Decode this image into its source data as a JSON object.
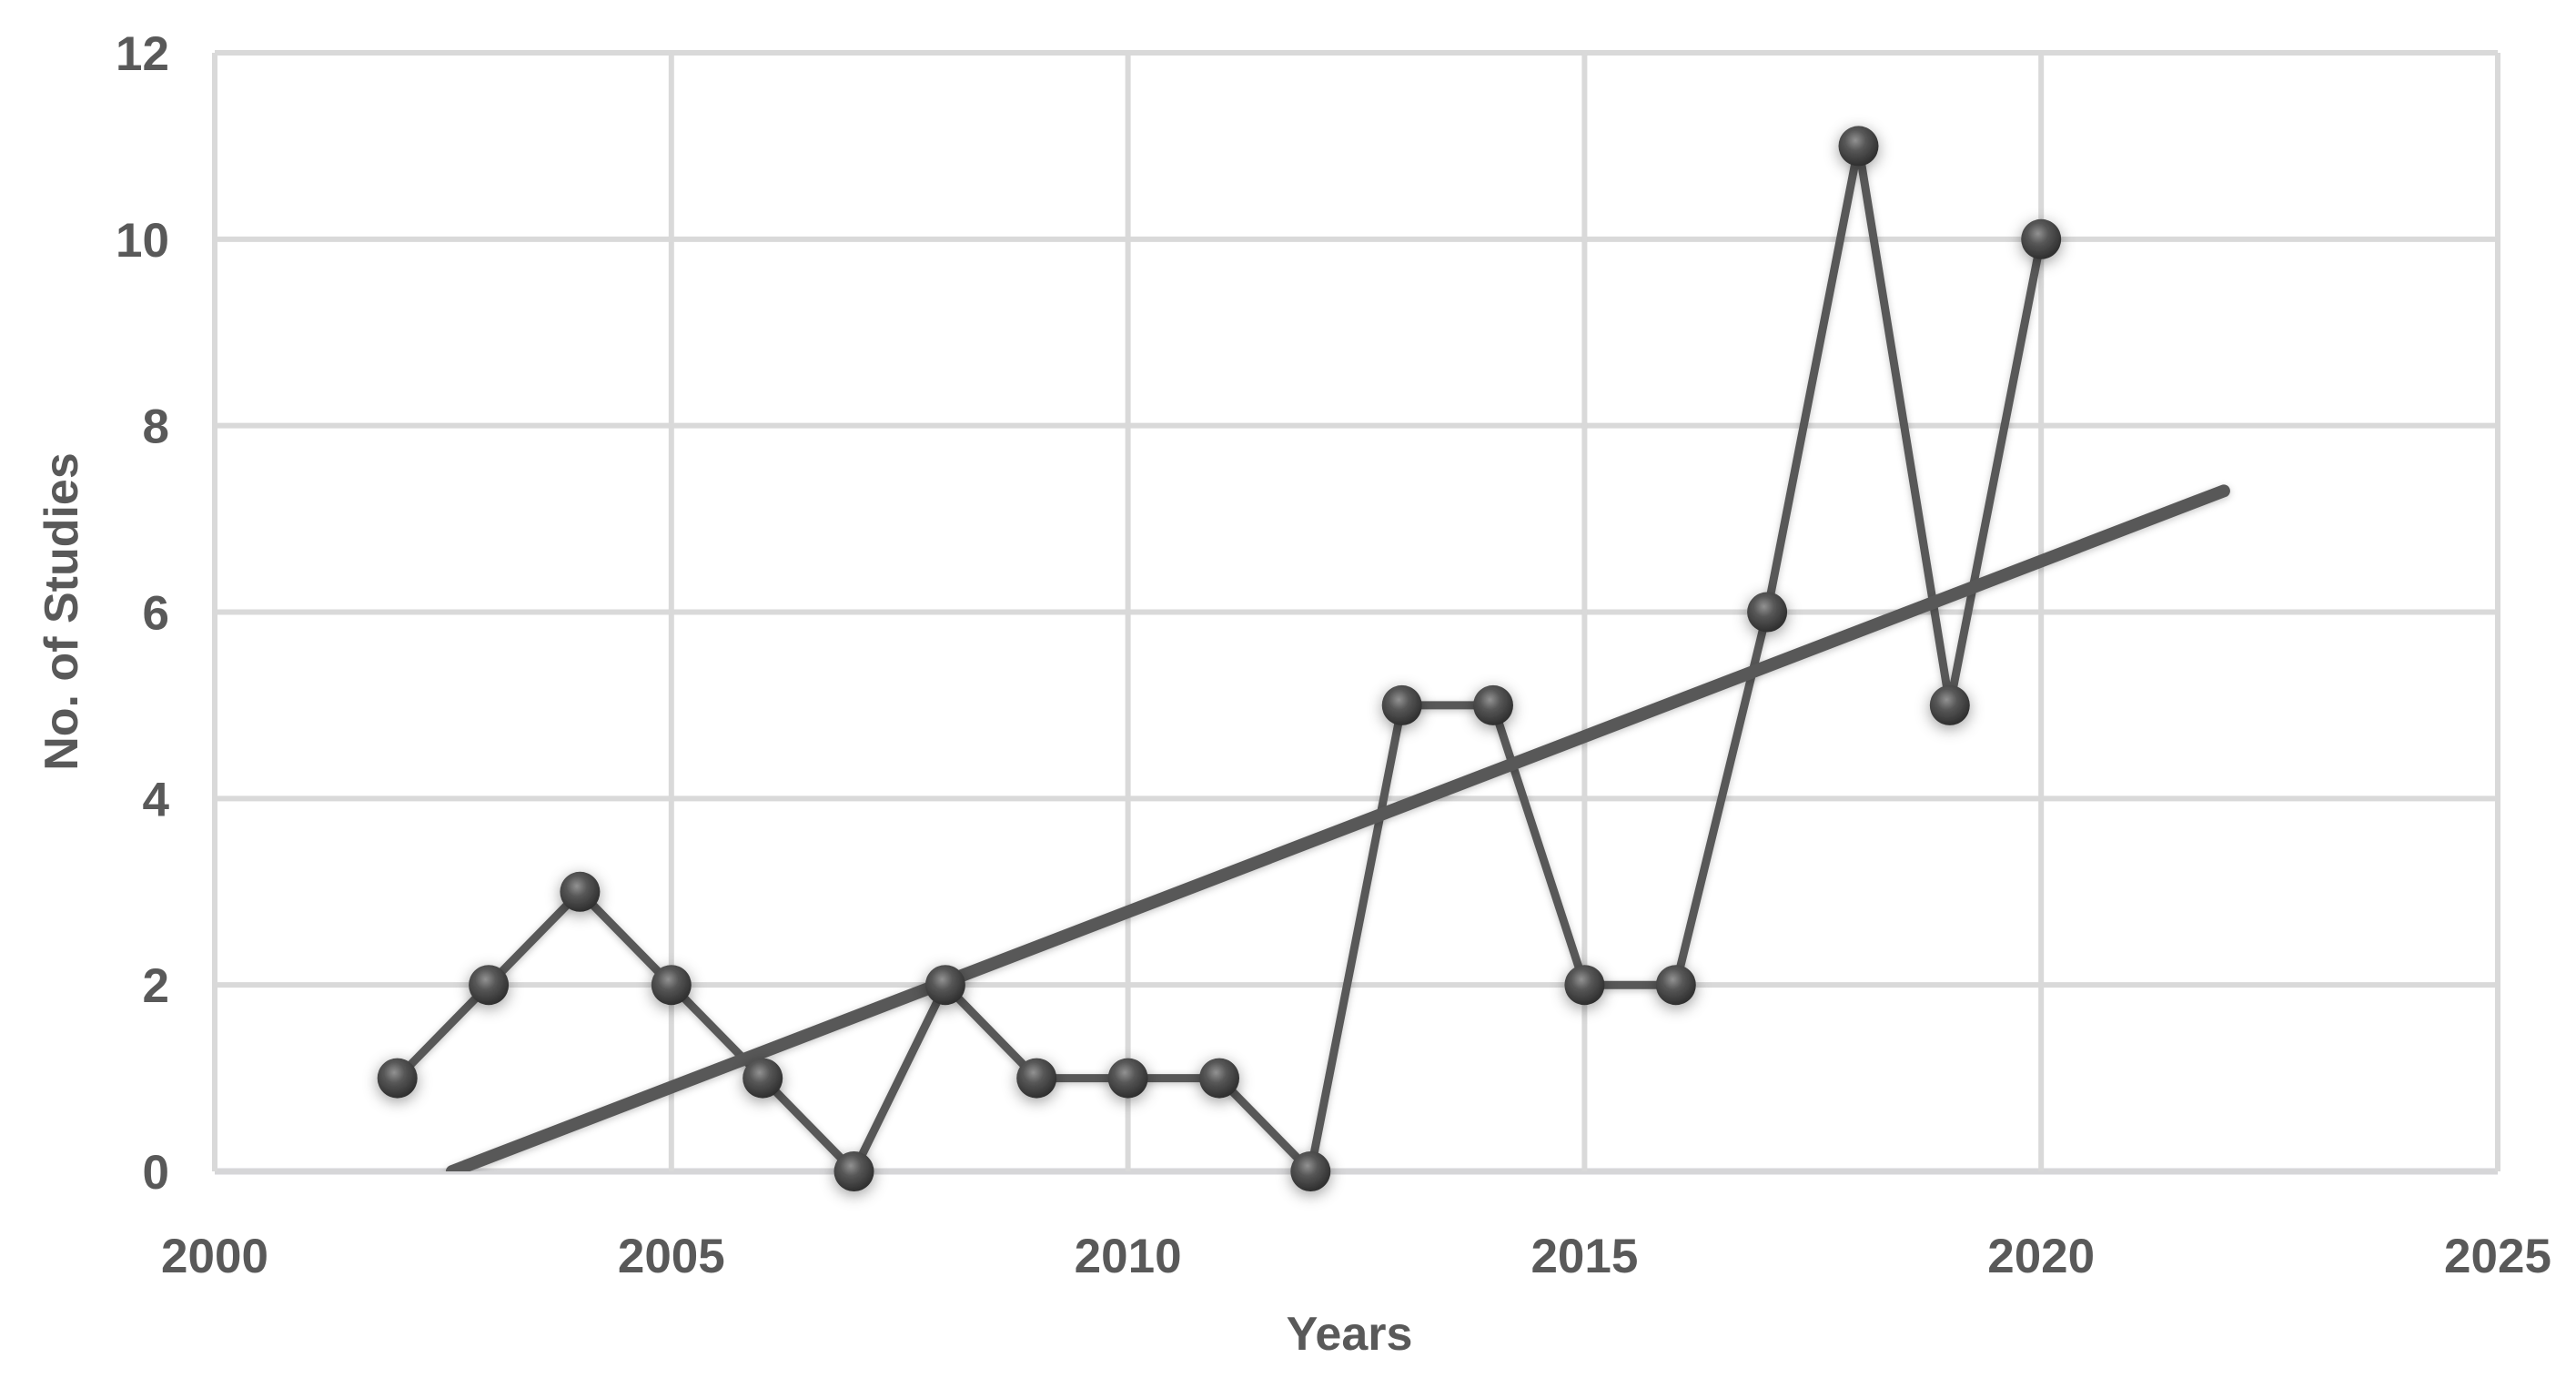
{
  "chart_data": {
    "type": "line",
    "title": "",
    "xlabel": "Years",
    "ylabel": "No. of Studies",
    "x": [
      2002,
      2003,
      2004,
      2005,
      2006,
      2007,
      2008,
      2009,
      2010,
      2011,
      2012,
      2013,
      2014,
      2015,
      2016,
      2017,
      2018,
      2019,
      2020
    ],
    "values": [
      1,
      2,
      3,
      2,
      1,
      0,
      2,
      1,
      1,
      1,
      0,
      5,
      5,
      2,
      2,
      6,
      11,
      5,
      10
    ],
    "xlim": [
      2000,
      2025
    ],
    "ylim": [
      0,
      12
    ],
    "x_ticks": [
      2000,
      2005,
      2010,
      2015,
      2020,
      2025
    ],
    "y_ticks": [
      0,
      2,
      4,
      6,
      8,
      10,
      12
    ],
    "grid": true,
    "legend": "none",
    "trendline": {
      "type": "linear",
      "start": {
        "x": 2002.6,
        "y": 0
      },
      "end": {
        "x": 2022.0,
        "y": 7.3
      }
    },
    "colors": {
      "series": "#595959",
      "trendline": "#595959",
      "marker_core": "#2a2a2a",
      "marker_mid": "#575757",
      "marker_highlight": "#929292",
      "gridline": "#d9d9d9",
      "axis_line": "#d6d6d8",
      "text": "#595959",
      "background": "#ffffff"
    }
  }
}
